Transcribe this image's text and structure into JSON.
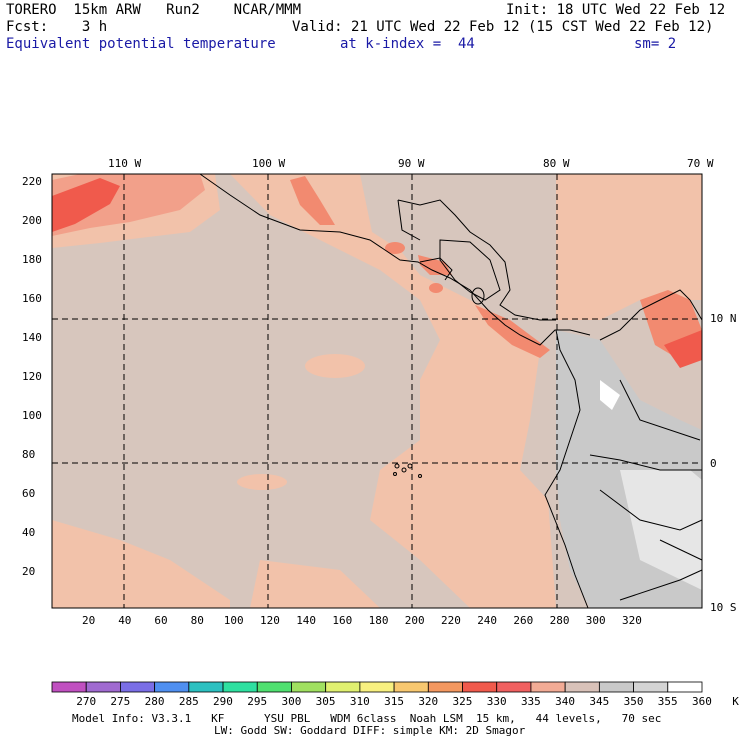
{
  "header": {
    "line1_left": "TORERO  15km ARW   Run2    NCAR/MMM",
    "line1_right": "Init: 18 UTC Wed 22 Feb 12",
    "line2_left": "Fcst:    3 h",
    "line2_right": "Valid: 21 UTC Wed 22 Feb 12 (15 CST Wed 22 Feb 12)",
    "line3_field": "Equivalent potential temperature",
    "line3_kindex": "at k-index =  44",
    "line3_sm": "sm= 2"
  },
  "map": {
    "lon_labels": [
      "110 W",
      "100 W",
      "90 W",
      "80 W",
      "70 W"
    ],
    "lat_labels": [
      "10 N",
      "0",
      "10 S"
    ],
    "y_ticks": [
      "220",
      "200",
      "180",
      "160",
      "140",
      "120",
      "100",
      "80",
      "60",
      "40",
      "20"
    ],
    "x_ticks": [
      "20",
      "40",
      "60",
      "80",
      "100",
      "120",
      "140",
      "160",
      "180",
      "200",
      "220",
      "240",
      "260",
      "280",
      "300",
      "320"
    ],
    "background_color": "#d7c6bd",
    "warm_color": "#f2c2aa",
    "hot_color": "#f28a70",
    "cool_color": "#c9c9c9"
  },
  "colorbar": {
    "labels": [
      "270",
      "275",
      "280",
      "285",
      "290",
      "295",
      "300",
      "305",
      "310",
      "315",
      "320",
      "325",
      "330",
      "335",
      "340",
      "345",
      "350",
      "355",
      "360",
      "K"
    ],
    "colors": [
      "#c050c0",
      "#a06ad0",
      "#7a6ee6",
      "#4f8ff0",
      "#2cc0c0",
      "#2ee0a0",
      "#50e070",
      "#a0e060",
      "#e0f070",
      "#f8f080",
      "#f8c870",
      "#f49860",
      "#f05a4c",
      "#f06060",
      "#f2ab95",
      "#d9c2b9",
      "#c9c9c9",
      "#d4d4d4",
      "#ffffff"
    ]
  },
  "footer": {
    "line1": "Model Info: V3.3.1   KF      YSU PBL   WDM 6class  Noah LSM  15 km,   44 levels,   70 sec",
    "line2": "LW: Godd SW: Goddard DIFF: simple KM: 2D Smagor"
  }
}
